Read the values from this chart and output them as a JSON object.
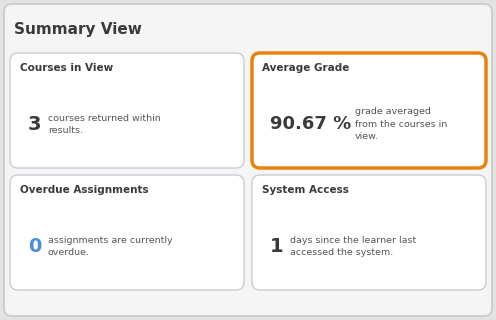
{
  "title": "Summary View",
  "title_fontsize": 11,
  "title_color": "#3a3a3a",
  "background_color": "#e2e2e2",
  "outer_border_color": "#c8c8c8",
  "card_background": "#ffffff",
  "card_border_color": "#c8cdd4",
  "highlight_border_color": "#e8820c",
  "cards": [
    {
      "title": "Courses in View",
      "value": "3",
      "value_color": "#3a3a3a",
      "desc_lines": [
        "courses returned within",
        "results."
      ],
      "highlighted": false,
      "col": 0,
      "row": 0
    },
    {
      "title": "Average Grade",
      "value": "90.67 %",
      "value_color": "#3a3a3a",
      "desc_lines": [
        "grade averaged",
        "from the courses in",
        "view."
      ],
      "highlighted": true,
      "col": 1,
      "row": 0
    },
    {
      "title": "Overdue Assignments",
      "value": "0",
      "value_color": "#4a90d9",
      "desc_lines": [
        "assignments are currently",
        "overdue."
      ],
      "highlighted": false,
      "col": 0,
      "row": 1
    },
    {
      "title": "System Access",
      "value": "1",
      "value_color": "#3a3a3a",
      "desc_lines": [
        "days since the learner last",
        "accessed the system."
      ],
      "highlighted": false,
      "col": 1,
      "row": 1
    }
  ]
}
